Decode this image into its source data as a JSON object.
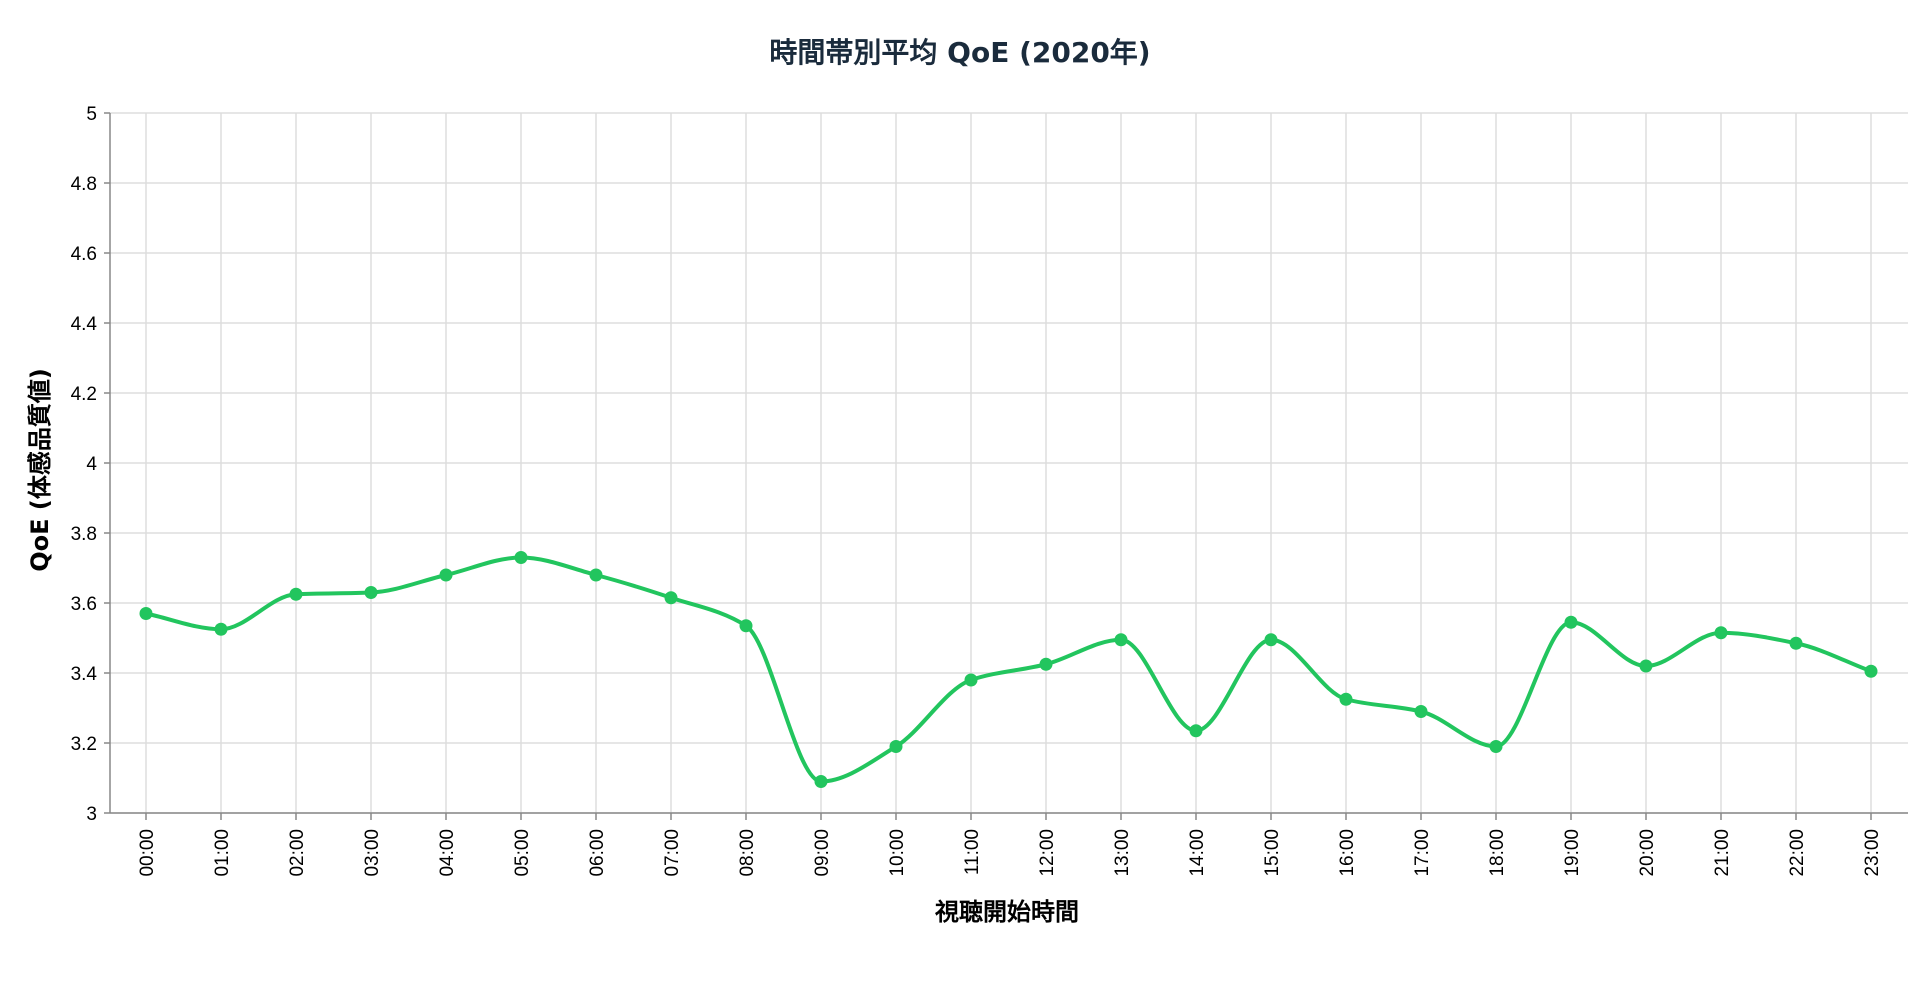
{
  "chart_data": {
    "type": "line",
    "title": "時間帯別平均 QoE (2020年)",
    "xlabel": "視聴開始時間",
    "ylabel": "QoE (体感品質値)",
    "categories": [
      "00:00",
      "01:00",
      "02:00",
      "03:00",
      "04:00",
      "05:00",
      "06:00",
      "07:00",
      "08:00",
      "09:00",
      "10:00",
      "11:00",
      "12:00",
      "13:00",
      "14:00",
      "15:00",
      "16:00",
      "17:00",
      "18:00",
      "19:00",
      "20:00",
      "21:00",
      "22:00",
      "23:00"
    ],
    "series": [
      {
        "values": [
          3.57,
          3.525,
          3.625,
          3.63,
          3.68,
          3.73,
          3.68,
          3.615,
          3.535,
          3.09,
          3.19,
          3.38,
          3.425,
          3.495,
          3.235,
          3.495,
          3.325,
          3.29,
          3.19,
          3.545,
          3.42,
          3.515,
          3.485,
          3.405
        ]
      }
    ],
    "ylim": [
      3,
      5
    ],
    "yticks": [
      "3",
      "3.2",
      "3.4",
      "3.6",
      "3.8",
      "4",
      "4.2",
      "4.4",
      "4.6",
      "4.8",
      "5"
    ],
    "grid": true,
    "line_color": "#22c55e",
    "curve": "smooth",
    "markers": true
  }
}
